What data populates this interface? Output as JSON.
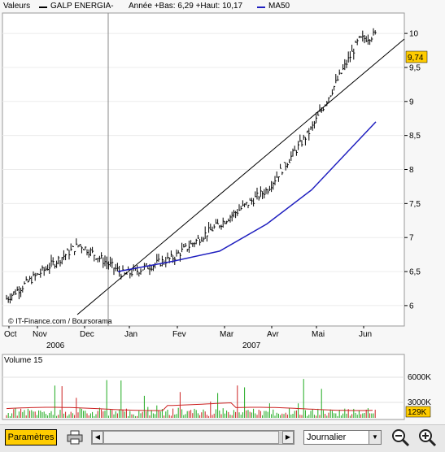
{
  "legend": {
    "valeurs": "Valeurs",
    "stock": "GALP ENERGIA-",
    "stats": "Année +Bas: 6,29 +Haut: 10,17",
    "ma": "MA50"
  },
  "colors": {
    "price": "#000000",
    "ma": "#1f1fbf",
    "current_bg": "#ffcc00",
    "vol_green": "#1faa1f",
    "vol_red": "#cc2222",
    "vol_ma": "#cc2222"
  },
  "price_axis": {
    "ticks": [
      "10",
      "9,5",
      "9",
      "8,5",
      "8",
      "7,5",
      "7",
      "6,5",
      "6"
    ],
    "min": 5.7,
    "max": 10.3,
    "current": "9,74"
  },
  "time_axis": {
    "months": [
      "Oct",
      "Nov",
      "Dec",
      "Jan",
      "Fev",
      "Mar",
      "Avr",
      "Mai",
      "Jun"
    ],
    "years": [
      "2006",
      "2007"
    ]
  },
  "watermark": "© IT-Finance.com / Boursorama",
  "volume": {
    "title": "Volume 15",
    "ticks": [
      "6000K",
      "3000K"
    ],
    "current": "129K"
  },
  "toolbar": {
    "params_label": "Paramètres",
    "print_icon": "printer-icon",
    "period_value": "Journalier",
    "zoom_out_icon": "zoom-out-icon",
    "zoom_in_icon": "zoom-in-icon"
  },
  "chart_data": {
    "type": "line",
    "title": "GALP ENERGIA-",
    "xlabel": "",
    "ylabel": "",
    "ylim": [
      5.7,
      10.3
    ],
    "x": [
      "2006-10",
      "2006-11",
      "2006-12",
      "2007-01",
      "2007-02",
      "2007-03",
      "2007-04",
      "2007-05",
      "2007-06"
    ],
    "series": [
      {
        "name": "GALP ENERGIA-",
        "values": [
          6.1,
          6.4,
          6.9,
          6.45,
          6.7,
          7.2,
          7.7,
          8.6,
          9.9
        ]
      },
      {
        "name": "MA50",
        "values": [
          null,
          null,
          null,
          6.5,
          6.65,
          6.8,
          7.2,
          7.7,
          8.7
        ]
      }
    ],
    "annotations": [
      "Année +Bas: 6,29",
      "+Haut: 10,17",
      "9,74"
    ]
  }
}
